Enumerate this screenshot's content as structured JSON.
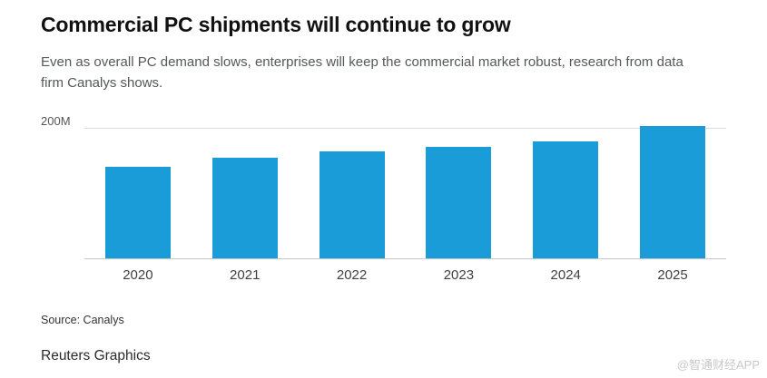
{
  "chart_data": {
    "type": "bar",
    "title": "Commercial PC shipments will continue to grow",
    "subtitle": "Even as overall PC demand slows, enterprises will keep the commercial market robust, research from data firm Canalys shows.",
    "categories": [
      "2020",
      "2021",
      "2022",
      "2023",
      "2024",
      "2025"
    ],
    "values": [
      140,
      154,
      163,
      170,
      178,
      202
    ],
    "unit": "M units",
    "xlabel": "",
    "ylabel": "",
    "ylim": [
      0,
      210
    ],
    "y_tick_labels": [
      "200M"
    ],
    "gridline_value": 200,
    "grid": "single horizontal gridline at 200M plus baseline",
    "legend": "none",
    "bar_color": "#1a9cd8"
  },
  "footer": {
    "source": "Source: Canalys",
    "credit": "Reuters Graphics",
    "watermark": "@智通财经APP"
  }
}
